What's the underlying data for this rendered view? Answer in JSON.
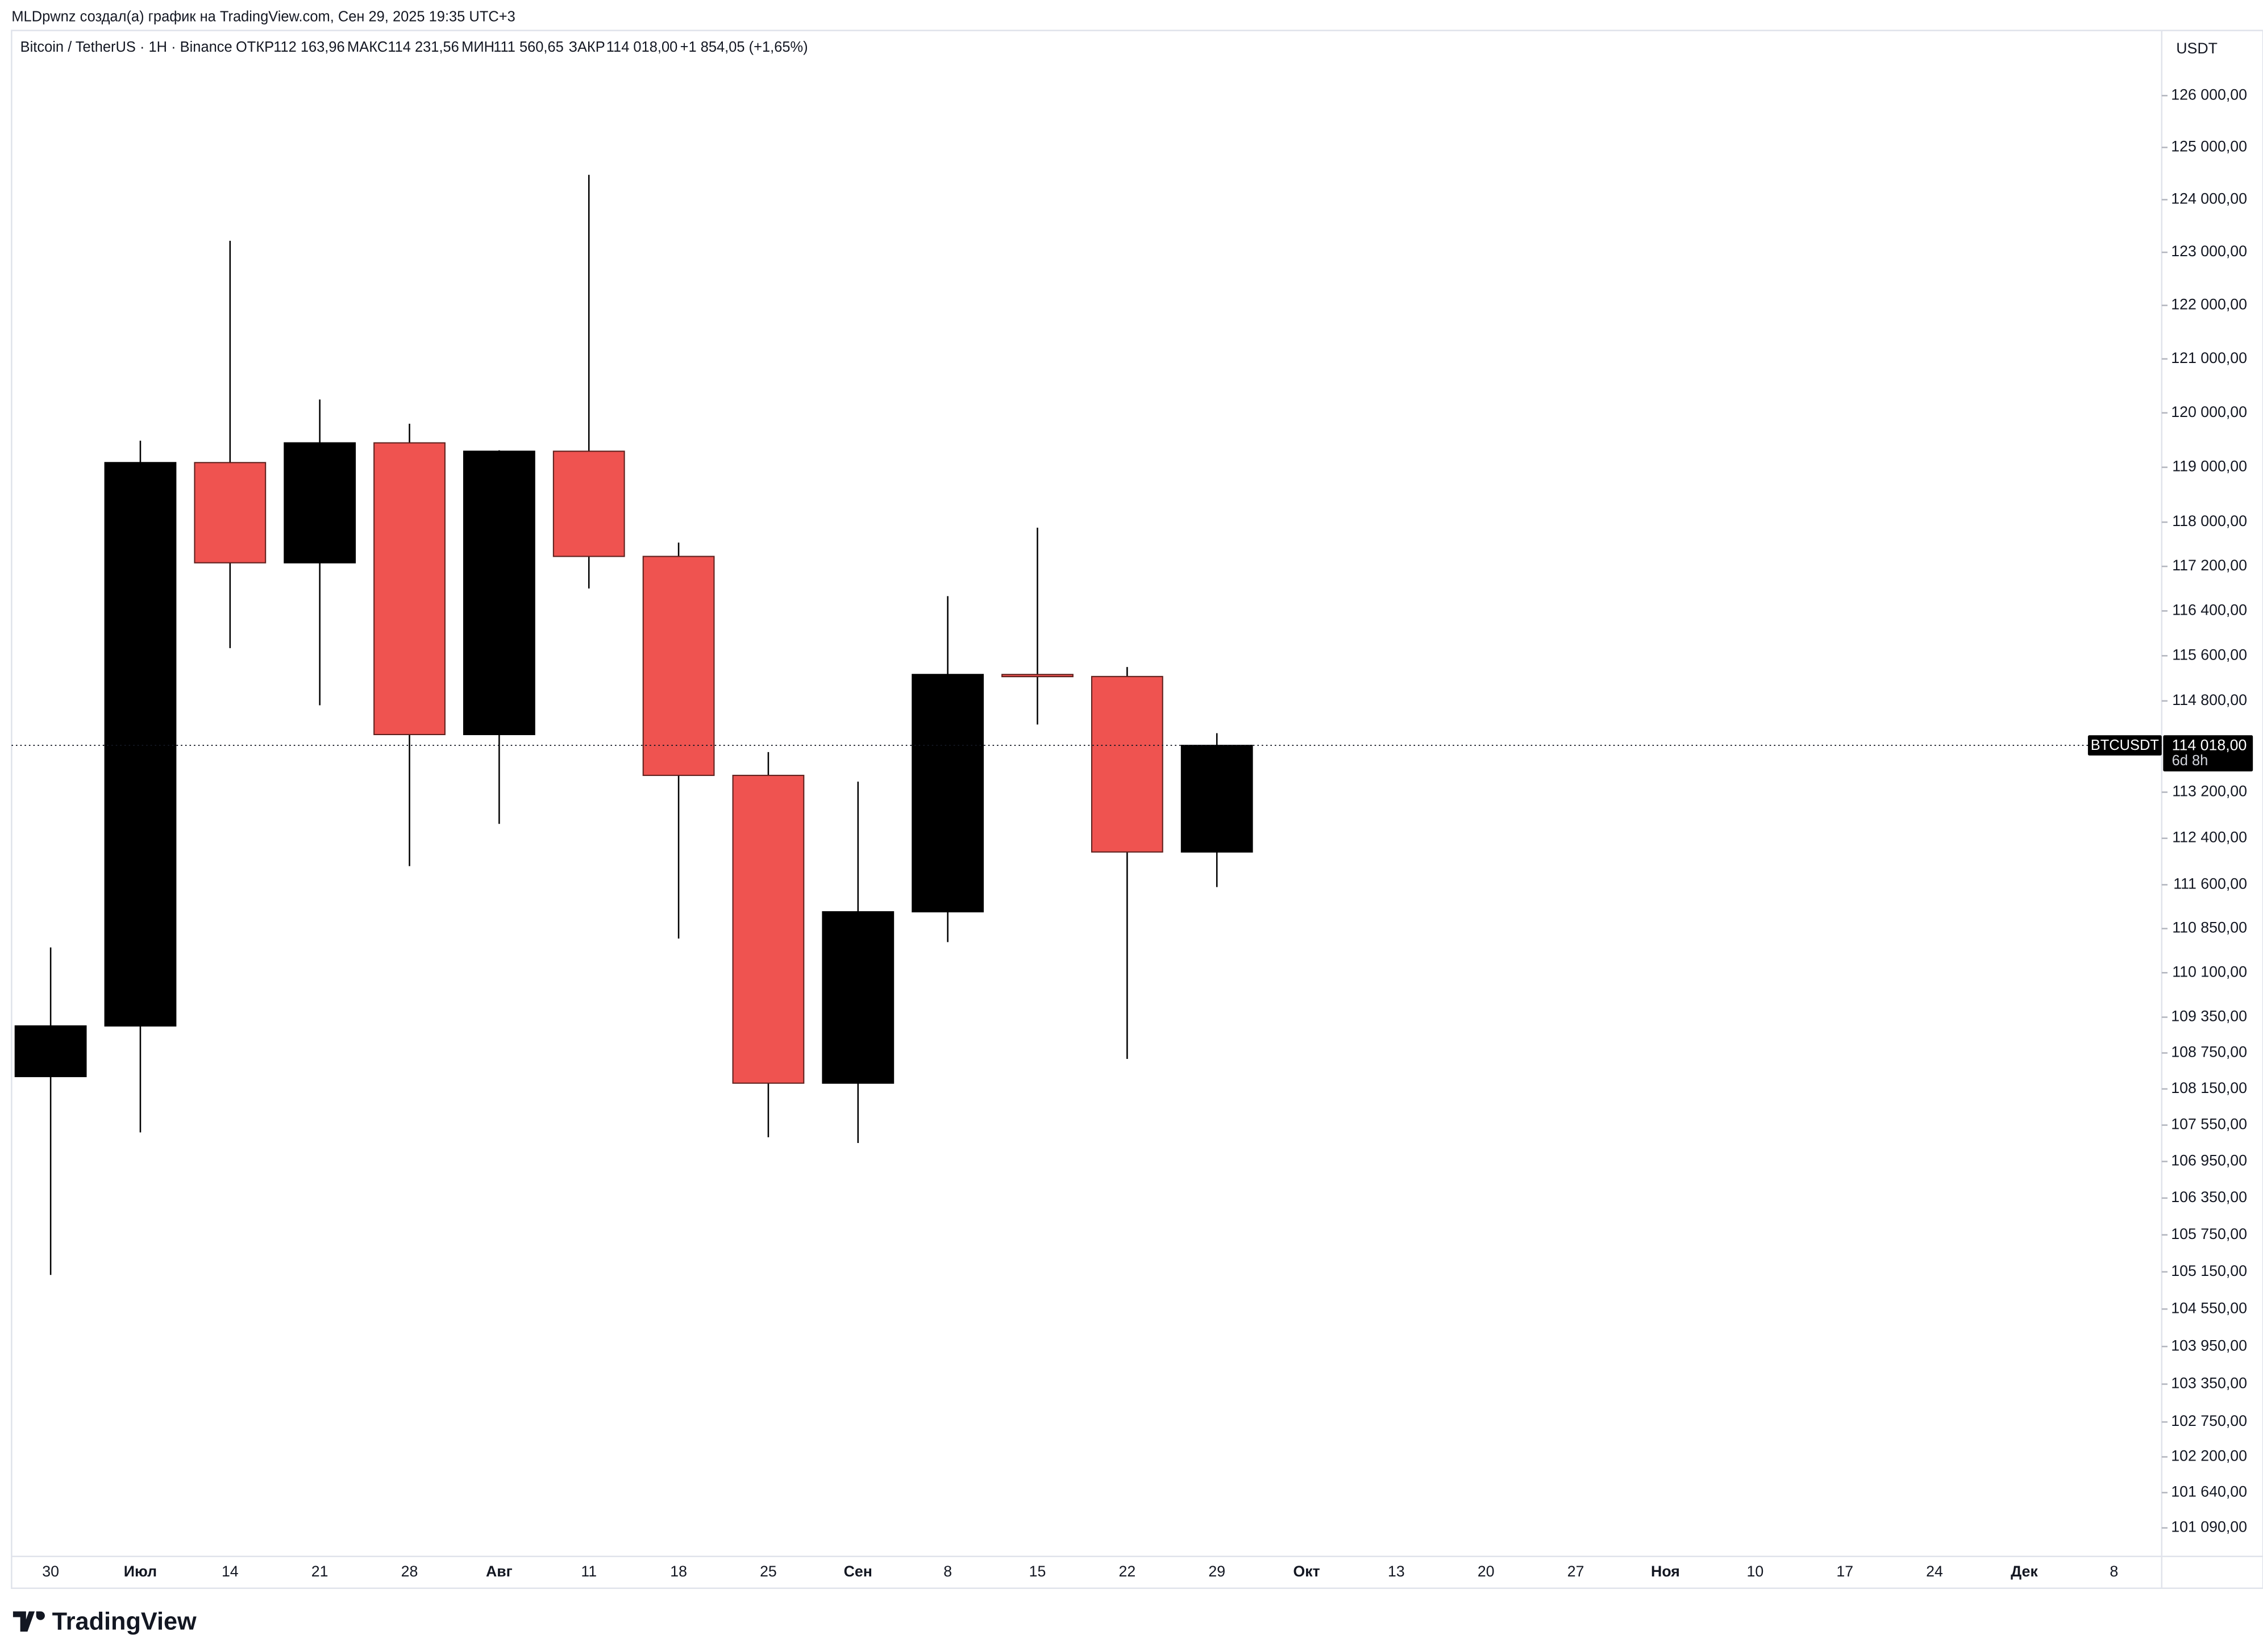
{
  "header": {
    "author_line": "MLDpwnz создал(а) график на TradingView.com, Сен 29, 2025 19:35 UTC+3"
  },
  "legend": {
    "symbol": "Bitcoin / TetherUS · 1H · Binance",
    "open_label": "ОТКР",
    "open": "112 163,96",
    "high_label": "МАКС",
    "high": "114 231,56",
    "low_label": "МИН",
    "low": "111 560,65",
    "close_label": "ЗАКР",
    "close": "114 018,00",
    "change": "+1 854,05 (+1,65%)"
  },
  "price_tag": {
    "symbol": "BTCUSDT",
    "price": "114 018,00",
    "countdown": "6d 8h"
  },
  "logo": "TradingView",
  "chart_data": {
    "type": "candlestick",
    "currency": "USDT",
    "log_scale": true,
    "up_color": "#000000",
    "down_color": "#ef5350",
    "categories": [
      "30",
      "Июл",
      "14",
      "21",
      "28",
      "Авг",
      "11",
      "18",
      "25",
      "Сен",
      "8",
      "15",
      "22",
      "29",
      "Окт",
      "13",
      "20",
      "27",
      "Ноя",
      "10",
      "17",
      "24",
      "Дек",
      "8"
    ],
    "series": {
      "open": [
        108356,
        109203,
        119086,
        117265,
        119448,
        114208,
        119294,
        117380,
        113493,
        108246,
        111137,
        115268,
        115232,
        112163.96,
        null,
        null,
        null,
        null,
        null,
        null,
        null,
        null,
        null,
        null
      ],
      "high": [
        110529,
        119488,
        123218,
        120247,
        119800,
        119312,
        124474,
        117630,
        113900,
        113384,
        116665,
        117900,
        115400,
        114231.56,
        null,
        null,
        null,
        null,
        null,
        null,
        null,
        null,
        null,
        null
      ],
      "low": [
        105100,
        107429,
        115736,
        114723,
        111920,
        112650,
        116803,
        110680,
        107350,
        107255,
        110620,
        114384,
        108650,
        111560.65,
        null,
        null,
        null,
        null,
        null,
        null,
        null,
        null,
        null,
        null
      ],
      "close": [
        109203,
        119086,
        117265,
        119448,
        114208,
        119294,
        117380,
        113493,
        108246,
        111137,
        115268,
        115232,
        112163.96,
        114018,
        null,
        null,
        null,
        null,
        null,
        null,
        null,
        null,
        null,
        null
      ]
    },
    "last_price": 114018,
    "ylim": [
      100670,
      127240
    ],
    "yticks": [
      {
        "value": 126000,
        "label": "126 000,00"
      },
      {
        "value": 125000,
        "label": "125 000,00"
      },
      {
        "value": 124000,
        "label": "124 000,00"
      },
      {
        "value": 123000,
        "label": "123 000,00"
      },
      {
        "value": 122000,
        "label": "122 000,00"
      },
      {
        "value": 121000,
        "label": "121 000,00"
      },
      {
        "value": 120000,
        "label": "120 000,00"
      },
      {
        "value": 119000,
        "label": "119 000,00"
      },
      {
        "value": 118000,
        "label": "118 000,00"
      },
      {
        "value": 117200,
        "label": "117 200,00"
      },
      {
        "value": 116400,
        "label": "116 400,00"
      },
      {
        "value": 115600,
        "label": "115 600,00"
      },
      {
        "value": 114800,
        "label": "114 800,00"
      },
      {
        "value": 113200,
        "label": "113 200,00"
      },
      {
        "value": 112400,
        "label": "112 400,00"
      },
      {
        "value": 111600,
        "label": "111 600,00"
      },
      {
        "value": 110850,
        "label": "110 850,00"
      },
      {
        "value": 110100,
        "label": "110 100,00"
      },
      {
        "value": 109350,
        "label": "109 350,00"
      },
      {
        "value": 108750,
        "label": "108 750,00"
      },
      {
        "value": 108150,
        "label": "108 150,00"
      },
      {
        "value": 107550,
        "label": "107 550,00"
      },
      {
        "value": 106950,
        "label": "106 950,00"
      },
      {
        "value": 106350,
        "label": "106 350,00"
      },
      {
        "value": 105750,
        "label": "105 750,00"
      },
      {
        "value": 105150,
        "label": "105 150,00"
      },
      {
        "value": 104550,
        "label": "104 550,00"
      },
      {
        "value": 103950,
        "label": "103 950,00"
      },
      {
        "value": 103350,
        "label": "103 350,00"
      },
      {
        "value": 102750,
        "label": "102 750,00"
      },
      {
        "value": 102200,
        "label": "102 200,00"
      },
      {
        "value": 101640,
        "label": "101 640,00"
      },
      {
        "value": 101090,
        "label": "101 090,00"
      }
    ]
  }
}
